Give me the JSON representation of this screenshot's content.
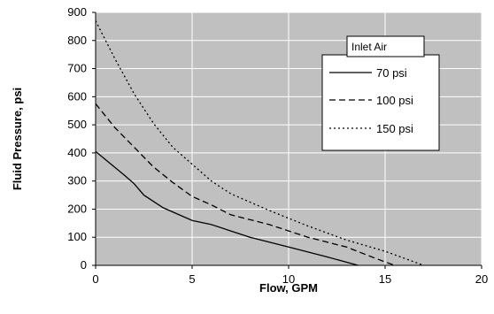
{
  "chart_data": {
    "type": "line",
    "title": "",
    "xlabel": "Flow, GPM",
    "ylabel": "Fluid Pressure, psi",
    "xlim": [
      0,
      20
    ],
    "ylim": [
      0,
      900
    ],
    "xticks": [
      0,
      5,
      10,
      15,
      20
    ],
    "yticks": [
      0,
      100,
      200,
      300,
      400,
      500,
      600,
      700,
      800,
      900
    ],
    "grid": true,
    "plot_background": "#c0c0c0",
    "legend": {
      "title": "Inlet Air",
      "placement": "top-right"
    },
    "series": [
      {
        "name": "70 psi",
        "style": "solid",
        "color": "#000000",
        "x": [
          0,
          0.8,
          1.5,
          2.0,
          2.5,
          3.5,
          5.0,
          6.0,
          8.0,
          10.0,
          12.0,
          13.6
        ],
        "y": [
          405,
          360,
          320,
          290,
          250,
          205,
          160,
          145,
          100,
          65,
          30,
          0
        ]
      },
      {
        "name": "100 psi",
        "style": "dashed",
        "color": "#000000",
        "x": [
          0,
          1.0,
          2.0,
          3.0,
          4.0,
          5.0,
          6.0,
          7.0,
          9.0,
          11.0,
          13.0,
          14.5,
          15.5
        ],
        "y": [
          575,
          490,
          420,
          350,
          295,
          245,
          215,
          180,
          145,
          100,
          65,
          25,
          0
        ]
      },
      {
        "name": "150 psi",
        "style": "dotted",
        "color": "#000000",
        "x": [
          0,
          1.0,
          2.0,
          3.0,
          4.0,
          5.0,
          6.0,
          7.0,
          9.0,
          11.0,
          13.0,
          15.0,
          17.0
        ],
        "y": [
          870,
          735,
          610,
          505,
          420,
          360,
          300,
          255,
          195,
          140,
          90,
          50,
          0
        ]
      }
    ]
  }
}
